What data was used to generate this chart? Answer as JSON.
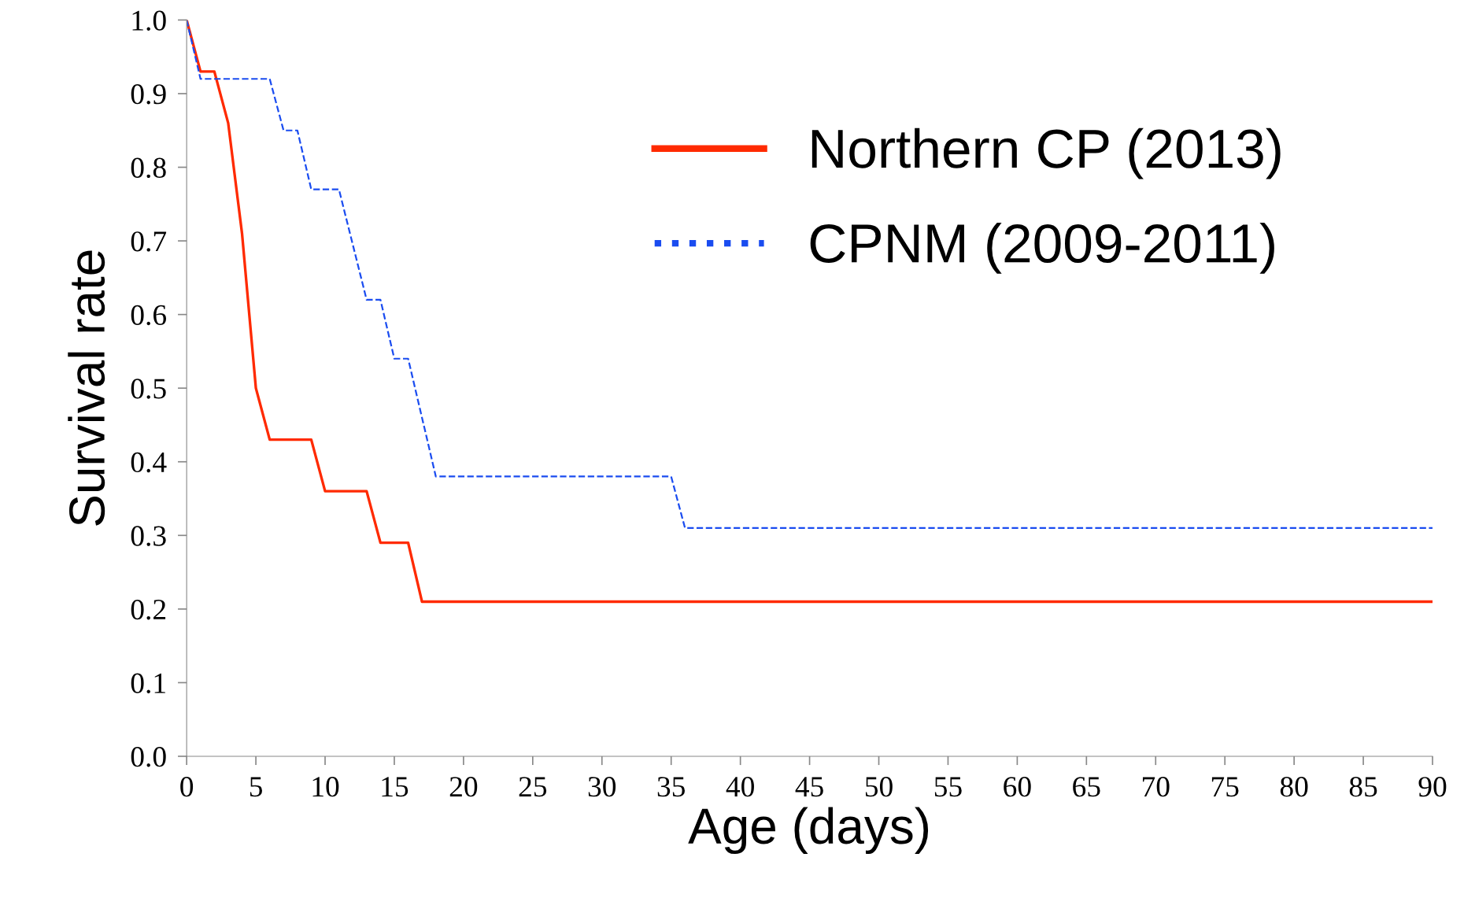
{
  "chart_data": {
    "type": "line",
    "xlabel": "Age (days)",
    "ylabel": "Survival rate",
    "xlim": [
      0,
      90
    ],
    "xticks": [
      0,
      5,
      10,
      15,
      20,
      25,
      30,
      35,
      40,
      45,
      50,
      55,
      60,
      65,
      70,
      75,
      80,
      85,
      90
    ],
    "ylim": [
      0,
      1.0
    ],
    "yticks": [
      {
        "value": 0,
        "label": "0.0"
      },
      {
        "value": 0.1,
        "label": "0.1"
      },
      {
        "value": 0.2,
        "label": "0.2"
      },
      {
        "value": 0.3,
        "label": "0.3"
      },
      {
        "value": 0.4,
        "label": "0.4"
      },
      {
        "value": 0.5,
        "label": "0.5"
      },
      {
        "value": 0.6,
        "label": "0.6"
      },
      {
        "value": 0.7,
        "label": "0.7"
      },
      {
        "value": 0.8,
        "label": "0.8"
      },
      {
        "value": 0.9,
        "label": "0.9"
      },
      {
        "value": 1.0,
        "label": "1.0"
      }
    ],
    "grid": false,
    "legend": "top right",
    "marker": "none",
    "series": [
      {
        "name": "Northern CP (2013)",
        "color": "#ff2a00",
        "line_style": "solid",
        "x": [
          0,
          1,
          2,
          3,
          4,
          5,
          6,
          9,
          10,
          13,
          14,
          16,
          17,
          90
        ],
        "values": [
          1.0,
          0.93,
          0.93,
          0.86,
          0.71,
          0.5,
          0.43,
          0.43,
          0.36,
          0.36,
          0.29,
          0.29,
          0.21,
          0.21
        ]
      },
      {
        "name": "CPNM (2009-2011)",
        "color": "#1a4cf0",
        "line_style": "dashed",
        "x": [
          0,
          1,
          6,
          7,
          8,
          9,
          11,
          13,
          14,
          15,
          16,
          18,
          35,
          36,
          90
        ],
        "values": [
          1.0,
          0.92,
          0.92,
          0.85,
          0.85,
          0.77,
          0.77,
          0.62,
          0.62,
          0.54,
          0.54,
          0.38,
          0.38,
          0.31,
          0.31
        ]
      }
    ]
  }
}
